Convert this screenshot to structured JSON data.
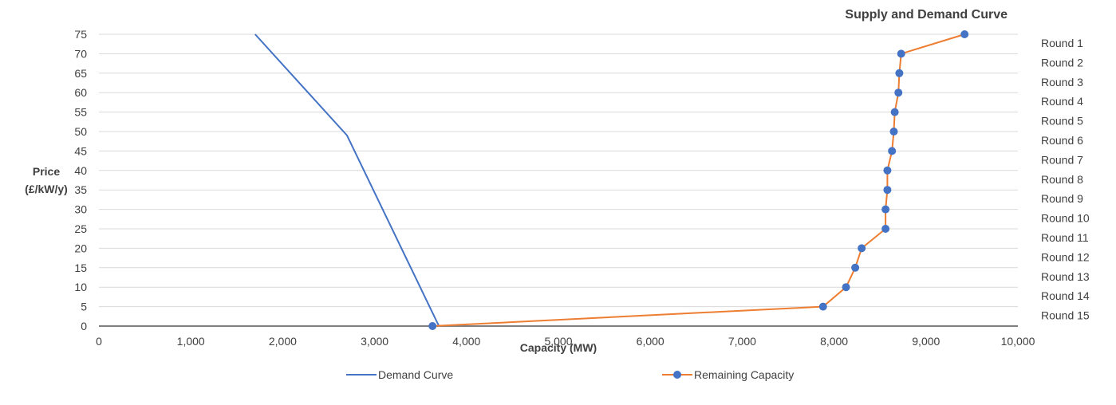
{
  "chart_data": {
    "type": "line",
    "title": "Supply and Demand Curve",
    "xlabel": "Capacity (MW)",
    "ylabel": [
      "Price",
      "(£/kW/y)"
    ],
    "xlim": [
      0,
      10000
    ],
    "ylim": [
      0,
      75
    ],
    "x_ticks": [
      0,
      1000,
      2000,
      3000,
      4000,
      5000,
      6000,
      7000,
      8000,
      9000,
      10000
    ],
    "x_tick_labels": [
      "0",
      "1,000",
      "2,000",
      "3,000",
      "4,000",
      "5,000",
      "6,000",
      "7,000",
      "8,000",
      "9,000",
      "10,000"
    ],
    "y_ticks": [
      0,
      5,
      10,
      15,
      20,
      25,
      30,
      35,
      40,
      45,
      50,
      55,
      60,
      65,
      70,
      75
    ],
    "grid": "horizontal",
    "legend_position": "bottom",
    "right_labels": [
      "Round 1",
      "Round 2",
      "Round 3",
      "Round 4",
      "Round 5",
      "Round 6",
      "Round 7",
      "Round 8",
      "Round 9",
      "Round 10",
      "Round 11",
      "Round 12",
      "Round 13",
      "Round 14",
      "Round 15"
    ],
    "series": [
      {
        "name": "Demand Curve",
        "color": "#4472C4",
        "markers": false,
        "points": [
          [
            1700,
            75
          ],
          [
            2700,
            49
          ],
          [
            3700,
            0
          ]
        ]
      },
      {
        "name": "Remaining Capacity",
        "color": "#ED7D31",
        "marker_color": "#4472C4",
        "markers": true,
        "points": [
          [
            9420,
            75
          ],
          [
            8730,
            70
          ],
          [
            8710,
            65
          ],
          [
            8700,
            60
          ],
          [
            8660,
            55
          ],
          [
            8650,
            50
          ],
          [
            8630,
            45
          ],
          [
            8580,
            40
          ],
          [
            8580,
            35
          ],
          [
            8560,
            30
          ],
          [
            8560,
            25
          ],
          [
            8300,
            20
          ],
          [
            8230,
            15
          ],
          [
            8130,
            10
          ],
          [
            7880,
            5
          ],
          [
            3630,
            0
          ]
        ]
      }
    ]
  }
}
